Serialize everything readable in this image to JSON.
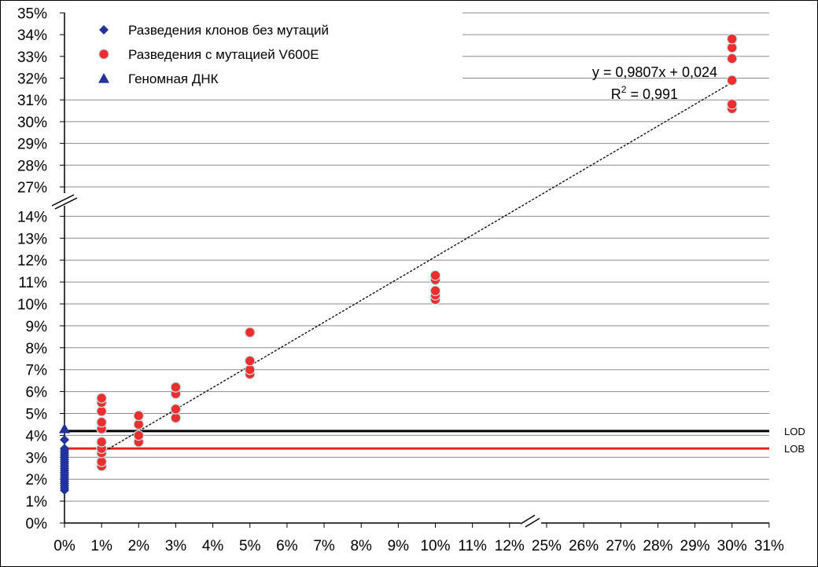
{
  "chart_data": {
    "type": "scatter",
    "x_ticks": [
      "0%",
      "1%",
      "2%",
      "3%",
      "4%",
      "5%",
      "6%",
      "7%",
      "8%",
      "9%",
      "10%",
      "11%",
      "12%",
      "25%",
      "26%",
      "27%",
      "28%",
      "29%",
      "30%",
      "31%"
    ],
    "y_ticks_lower": [
      "0%",
      "1%",
      "2%",
      "3%",
      "4%",
      "5%",
      "6%",
      "7%",
      "8%",
      "9%",
      "10%",
      "11%",
      "12%",
      "13%",
      "14%"
    ],
    "y_ticks_upper": [
      "27%",
      "28%",
      "29%",
      "30%",
      "31%",
      "32%",
      "33%",
      "34%",
      "35%"
    ],
    "x_axis_break": "between 12% and 25%",
    "y_axis_break": "between 14% and 27%",
    "grid": "horizontal",
    "legend_position": "top-left",
    "series": [
      {
        "name": "Разведения клонов без мутаций",
        "marker": "diamond",
        "color": "#22349a",
        "points": [
          [
            0,
            1.5
          ],
          [
            0,
            1.6
          ],
          [
            0,
            1.7
          ],
          [
            0,
            1.8
          ],
          [
            0,
            1.9
          ],
          [
            0,
            2.0
          ],
          [
            0,
            2.1
          ],
          [
            0,
            2.2
          ],
          [
            0,
            2.3
          ],
          [
            0,
            2.4
          ],
          [
            0,
            2.5
          ],
          [
            0,
            2.6
          ],
          [
            0,
            2.7
          ],
          [
            0,
            2.8
          ],
          [
            0,
            2.9
          ],
          [
            0,
            3.0
          ],
          [
            0,
            3.1
          ],
          [
            0,
            3.2
          ],
          [
            0,
            3.3
          ],
          [
            0,
            3.4
          ],
          [
            0,
            3.8
          ]
        ]
      },
      {
        "name": "Разведения с мутацией V600E",
        "marker": "circle",
        "color": "#ee2e2e",
        "points": [
          [
            1,
            2.6
          ],
          [
            1,
            2.8
          ],
          [
            1,
            3.2
          ],
          [
            1,
            3.4
          ],
          [
            1,
            3.7
          ],
          [
            1,
            4.3
          ],
          [
            1,
            4.6
          ],
          [
            1,
            5.1
          ],
          [
            1,
            5.5
          ],
          [
            1,
            5.7
          ],
          [
            2,
            3.7
          ],
          [
            2,
            4.0
          ],
          [
            2,
            4.5
          ],
          [
            2,
            4.9
          ],
          [
            3,
            4.8
          ],
          [
            3,
            5.2
          ],
          [
            3,
            5.9
          ],
          [
            3,
            6.2
          ],
          [
            5,
            6.8
          ],
          [
            5,
            7.0
          ],
          [
            5,
            7.4
          ],
          [
            5,
            8.7
          ],
          [
            10,
            10.2
          ],
          [
            10,
            10.4
          ],
          [
            10,
            10.6
          ],
          [
            10,
            11.1
          ],
          [
            10,
            11.3
          ],
          [
            30,
            30.6
          ],
          [
            30,
            30.8
          ],
          [
            30,
            31.9
          ],
          [
            30,
            32.9
          ],
          [
            30,
            33.4
          ],
          [
            30,
            33.8
          ]
        ]
      },
      {
        "name": "Геномная ДНК",
        "marker": "triangle",
        "color": "#22349a",
        "points": [
          [
            0,
            4.3
          ]
        ]
      }
    ],
    "trendline": {
      "type": "linear",
      "equation": "y = 0,9807x + 0,024",
      "r2_label": "R",
      "r2_sup": "2",
      "r2_value": " = 0,991",
      "x_range": [
        1,
        30
      ]
    },
    "reference_lines": [
      {
        "label": "LOD",
        "y": 4.2,
        "color": "#000000"
      },
      {
        "label": "LOB",
        "y": 3.4,
        "color": "#e8211d"
      }
    ]
  }
}
